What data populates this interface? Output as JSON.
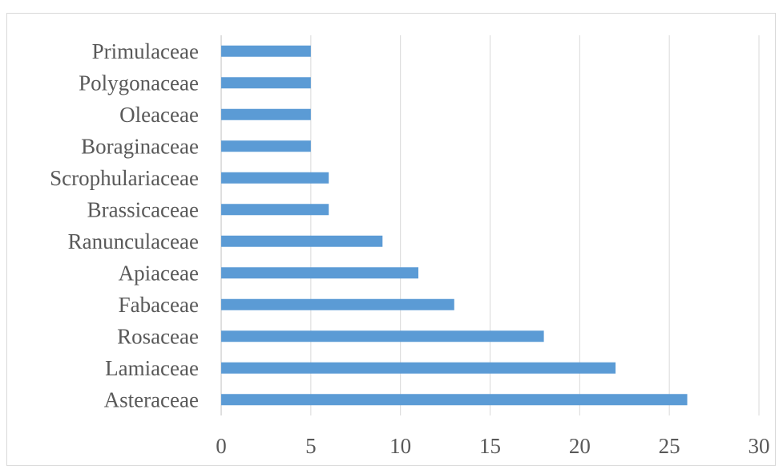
{
  "chart_data": {
    "type": "bar",
    "orientation": "horizontal",
    "title": "",
    "xlabel": "",
    "ylabel": "",
    "categories": [
      "Asteraceae",
      "Lamiaceae",
      "Rosaceae",
      "Fabaceae",
      "Apiaceae",
      "Ranunculaceae",
      "Brassicaceae",
      "Scrophulariaceae",
      "Boraginaceae",
      "Oleaceae",
      "Polygonaceae",
      "Primulaceae"
    ],
    "values": [
      26,
      22,
      18,
      13,
      11,
      9,
      6,
      6,
      5,
      5,
      5,
      5
    ],
    "xlim": [
      0,
      30
    ],
    "xticks": [
      "0",
      "5",
      "10",
      "15",
      "20",
      "25",
      "30"
    ],
    "grid": "vertical",
    "legend": "none",
    "colors": {
      "bar": "#5b9bd5",
      "gridline": "#d9d9d9",
      "axis_line": "#bfbfbf",
      "text": "#595959"
    }
  }
}
